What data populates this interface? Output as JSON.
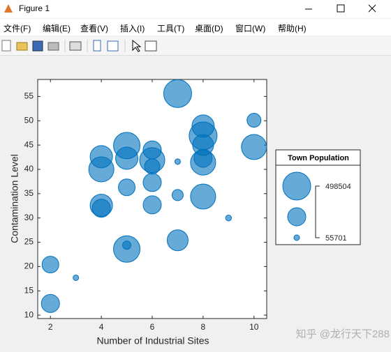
{
  "window": {
    "title": "Figure 1",
    "menu": [
      "文件(F)",
      "编辑(E)",
      "查看(V)",
      "插入(I)",
      "工具(T)",
      "桌面(D)",
      "窗口(W)",
      "帮助(H)"
    ],
    "watermark": "知乎 @龙行天下288"
  },
  "chart_data": {
    "type": "bubble",
    "xlabel": "Number of Industrial Sites",
    "ylabel": "Contamination Level",
    "x": [
      7,
      8,
      10,
      8,
      8,
      10,
      5,
      6,
      4,
      5,
      6,
      7,
      8,
      8,
      6,
      4,
      6,
      5,
      7,
      8,
      6,
      4,
      4,
      9,
      7,
      5,
      5,
      2,
      3,
      2
    ],
    "values": [
      55.6,
      48.9,
      50.1,
      46.9,
      45,
      44.6,
      44.9,
      44,
      42.6,
      42.3,
      41.9,
      41.6,
      42.3,
      41.4,
      40.6,
      40,
      37.3,
      36.3,
      34.7,
      34.4,
      32.7,
      32.6,
      32,
      30,
      25.4,
      23.6,
      24.4,
      20.4,
      17.7,
      12.4
    ],
    "sizes": [
      498504,
      387804,
      221754,
      498504,
      360129,
      443154,
      470829,
      304779,
      387804,
      387804,
      443154,
      55701,
      304779,
      443154,
      249429,
      443154,
      304779,
      277104,
      166404,
      443154,
      304779,
      387804,
      304779,
      60000,
      360129,
      470829,
      111054,
      277104,
      55701,
      304779
    ],
    "color": "#0072bd",
    "xlim": [
      1.5,
      10.5
    ],
    "ylim": [
      9.3,
      58.5
    ],
    "xticks": [
      2,
      4,
      6,
      8,
      10
    ],
    "yticks": [
      10,
      15,
      20,
      25,
      30,
      35,
      40,
      45,
      50,
      55
    ],
    "size_legend": {
      "title": "Town Population",
      "values": [
        498504,
        55701
      ]
    }
  }
}
